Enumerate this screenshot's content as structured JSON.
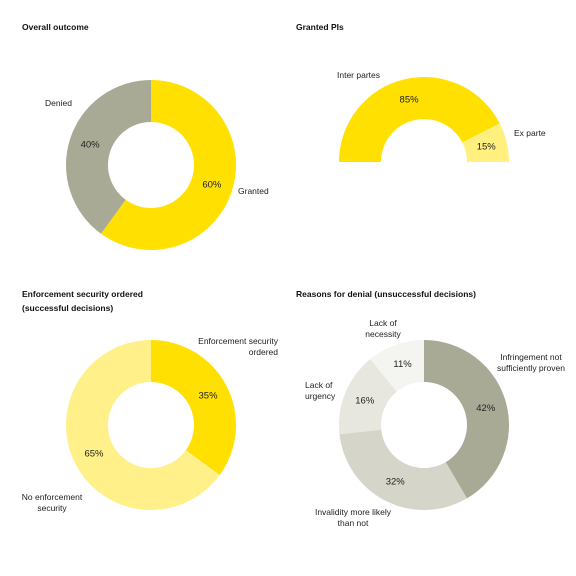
{
  "chart_data": [
    {
      "type": "donut",
      "title": "Overall outcome",
      "categories": [
        "Granted",
        "Denied"
      ],
      "values": [
        60,
        40
      ],
      "value_labels": [
        "60%",
        "40%"
      ],
      "colors": [
        "#ffe000",
        "#a9aa95"
      ]
    },
    {
      "type": "half-donut",
      "title": "Granted PIs",
      "categories": [
        "Inter partes",
        "Ex parte"
      ],
      "values": [
        85,
        15
      ],
      "value_labels": [
        "85%",
        "15%"
      ],
      "colors": [
        "#ffe000",
        "#fff07f"
      ]
    },
    {
      "type": "donut",
      "title": "Enforcement security ordered",
      "subtitle": "(successful decisions)",
      "categories": [
        "Enforcement security ordered",
        "No enforcement security"
      ],
      "values": [
        35,
        65
      ],
      "value_labels": [
        "35%",
        "65%"
      ],
      "colors": [
        "#ffe000",
        "#fff08a"
      ]
    },
    {
      "type": "donut",
      "title": "Reasons for denial (unsuccessful decisions)",
      "categories": [
        "Infringement not sufficiently proven",
        "Invalidity more likely than not",
        "Lack of urgency",
        "Lack of necessity"
      ],
      "values": [
        42,
        32,
        16,
        11
      ],
      "value_labels": [
        "42%",
        "32%",
        "16%",
        "11%"
      ],
      "colors": [
        "#a9aa95",
        "#d5d5ca",
        "#e7e7e0",
        "#f4f4f0"
      ]
    }
  ]
}
